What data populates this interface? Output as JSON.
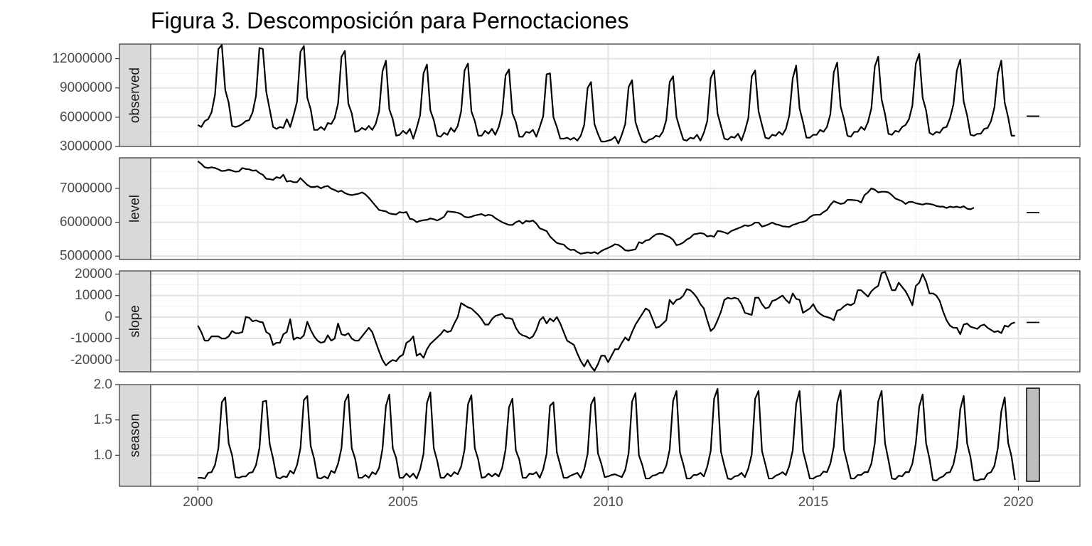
{
  "chart_data": {
    "type": "line",
    "title": "Figura 3. Descomposición para Pernoctaciones",
    "xlabel": "",
    "ylabel": "",
    "x_ticks": [
      "2000",
      "2005",
      "2010",
      "2015",
      "2020"
    ],
    "xlim": [
      1998.85,
      2021.5
    ],
    "frequency": "monthly",
    "x_start": "2000-01",
    "grid": true,
    "legend": "none",
    "line_color": "#000000",
    "panels": [
      {
        "name": "observed",
        "ylim": [
          3000000,
          13500000
        ],
        "y_ticks": [
          3000000,
          6000000,
          9000000,
          12000000
        ],
        "y_tick_labels": [
          "3000000",
          "6000000",
          "9000000",
          "12000000"
        ],
        "scale_indicator": "line",
        "values": [
          5200000,
          5000000,
          5600000,
          5800000,
          6500000,
          8300000,
          13000000,
          13400000,
          8800000,
          7500000,
          5100000,
          5000000,
          5100000,
          5300000,
          5600000,
          5700000,
          6500000,
          8200000,
          13100000,
          13000000,
          8600000,
          6800000,
          5000000,
          4800000,
          5000000,
          4900000,
          5800000,
          5000000,
          6200000,
          7600000,
          12700000,
          13300000,
          8000000,
          6800000,
          4700000,
          4700000,
          5000000,
          4700000,
          5400000,
          5300000,
          5900000,
          7400000,
          12200000,
          12800000,
          7400000,
          6400000,
          4500000,
          4600000,
          4900000,
          4700000,
          5100000,
          4700000,
          5300000,
          6600000,
          10700000,
          11800000,
          6800000,
          5800000,
          4100000,
          4200000,
          4600000,
          4300000,
          4800000,
          3800000,
          4900000,
          6200000,
          10500000,
          11400000,
          6700000,
          5700000,
          4100000,
          4000000,
          4400000,
          4200000,
          4900000,
          4500000,
          5100000,
          6600000,
          10800000,
          11500000,
          6600000,
          5600000,
          4100000,
          4100000,
          4600000,
          4300000,
          4800000,
          4200000,
          5000000,
          6400000,
          10300000,
          10900000,
          6400000,
          5500000,
          4000000,
          4000000,
          4500000,
          4400000,
          4700000,
          4000000,
          5000000,
          6100000,
          10400000,
          10500000,
          6000000,
          5000000,
          3800000,
          3800000,
          3900000,
          3700000,
          3900000,
          3600000,
          4100000,
          5200000,
          9000000,
          9600000,
          5300000,
          4300000,
          3500000,
          3500000,
          3600000,
          3700000,
          4000000,
          3300000,
          4200000,
          5300000,
          9100000,
          9800000,
          5500000,
          4400000,
          3500000,
          3400000,
          3700000,
          3800000,
          4100000,
          4000000,
          4500000,
          5700000,
          9600000,
          10200000,
          6000000,
          4800000,
          3700000,
          3600000,
          3900000,
          3800000,
          4200000,
          3600000,
          4400000,
          5600000,
          10000000,
          10800000,
          6400000,
          5100000,
          3800000,
          3700000,
          4000000,
          3900000,
          4300000,
          3600000,
          4600000,
          5900000,
          10200000,
          10800000,
          6600000,
          5200000,
          3900000,
          3800000,
          4200000,
          4100000,
          4500000,
          4200000,
          4800000,
          6200000,
          10000000,
          11300000,
          6900000,
          5500000,
          3900000,
          3900000,
          4200000,
          4200000,
          4700000,
          4500000,
          5000000,
          6300000,
          10600000,
          11600000,
          7100000,
          5800000,
          4100000,
          4000000,
          4500000,
          4500000,
          5000000,
          4700000,
          5500000,
          6900000,
          11200000,
          12200000,
          7800000,
          6300000,
          4300000,
          4200000,
          4600000,
          4500000,
          5000000,
          5200000,
          5800000,
          7200000,
          11500000,
          12500000,
          8000000,
          6700000,
          4400000,
          4200000,
          4500000,
          4400000,
          4900000,
          5000000,
          5900000,
          7300000,
          10800000,
          11900000,
          7600000,
          6200000,
          4200000,
          4100000,
          4300000,
          4300000,
          4800000,
          4900000,
          5600000,
          7000000,
          10500000,
          11800000,
          7500000,
          6000000,
          4100000,
          4100000
        ]
      },
      {
        "name": "level",
        "ylim": [
          4900000,
          7900000
        ],
        "y_ticks": [
          5000000,
          6000000,
          7000000
        ],
        "y_tick_labels": [
          "5000000",
          "6000000",
          "7000000"
        ],
        "scale_indicator": "line",
        "values": [
          7800000,
          7720000,
          7620000,
          7600000,
          7620000,
          7600000,
          7560000,
          7510000,
          7520000,
          7550000,
          7520000,
          7490000,
          7500000,
          7600000,
          7570000,
          7560000,
          7520000,
          7530000,
          7450000,
          7400000,
          7280000,
          7270000,
          7250000,
          7330000,
          7300000,
          7400000,
          7200000,
          7220000,
          7180000,
          7180000,
          7300000,
          7200000,
          7100000,
          7040000,
          7040000,
          7060000,
          7000000,
          7050000,
          7070000,
          6990000,
          6950000,
          6900000,
          6930000,
          6860000,
          6820000,
          6800000,
          6820000,
          6840000,
          6880000,
          6820000,
          6720000,
          6600000,
          6480000,
          6360000,
          6340000,
          6320000,
          6260000,
          6240000,
          6230000,
          6300000,
          6280000,
          6300000,
          6100000,
          6080000,
          6000000,
          6040000,
          6060000,
          6070000,
          6110000,
          6090000,
          6050000,
          6100000,
          6160000,
          6320000,
          6310000,
          6300000,
          6280000,
          6240000,
          6160000,
          6140000,
          6160000,
          6200000,
          6220000,
          6240000,
          6190000,
          6220000,
          6200000,
          6120000,
          6060000,
          6000000,
          5960000,
          5920000,
          5920000,
          6000000,
          6040000,
          5960000,
          6040000,
          6020000,
          6050000,
          5960000,
          5820000,
          5780000,
          5740000,
          5580000,
          5480000,
          5390000,
          5360000,
          5340000,
          5240000,
          5180000,
          5190000,
          5120000,
          5070000,
          5090000,
          5110000,
          5090000,
          5120000,
          5070000,
          5150000,
          5200000,
          5240000,
          5290000,
          5350000,
          5330000,
          5260000,
          5170000,
          5160000,
          5180000,
          5200000,
          5410000,
          5380000,
          5460000,
          5480000,
          5570000,
          5640000,
          5660000,
          5650000,
          5600000,
          5560000,
          5480000,
          5320000,
          5350000,
          5400000,
          5490000,
          5540000,
          5640000,
          5660000,
          5680000,
          5660000,
          5580000,
          5600000,
          5570000,
          5740000,
          5730000,
          5700000,
          5660000,
          5740000,
          5780000,
          5820000,
          5860000,
          5910000,
          5890000,
          5920000,
          5990000,
          5990000,
          5870000,
          5900000,
          5940000,
          5990000,
          5940000,
          5920000,
          5880000,
          5870000,
          5860000,
          5920000,
          5950000,
          5990000,
          6010000,
          6050000,
          6150000,
          6210000,
          6220000,
          6220000,
          6300000,
          6360000,
          6510000,
          6620000,
          6580000,
          6540000,
          6560000,
          6660000,
          6660000,
          6650000,
          6640000,
          6580000,
          6800000,
          6880000,
          7000000,
          6960000,
          6880000,
          6900000,
          6900000,
          6880000,
          6800000,
          6700000,
          6660000,
          6620000,
          6540000,
          6600000,
          6600000,
          6560000,
          6540000,
          6520000,
          6550000,
          6540000,
          6520000,
          6480000,
          6460000,
          6460000,
          6420000,
          6460000,
          6440000,
          6460000,
          6430000,
          6470000,
          6400000,
          6380000,
          6430000
        ]
      },
      {
        "name": "slope",
        "ylim": [
          -25500,
          21500
        ],
        "y_ticks": [
          -20000,
          -10000,
          0,
          10000,
          20000
        ],
        "y_tick_labels": [
          "-20000",
          "-10000",
          "0",
          "10000",
          "20000"
        ],
        "scale_indicator": "line",
        "values": [
          -4000,
          -7000,
          -11000,
          -11000,
          -9000,
          -9000,
          -9000,
          -10000,
          -10000,
          -9000,
          -6500,
          -7500,
          -7500,
          -7000,
          0,
          -300,
          -2000,
          -1500,
          -2200,
          -2500,
          -7000,
          -8000,
          -13000,
          -12000,
          -12000,
          -8000,
          -7000,
          -1000,
          -10500,
          -9500,
          -10000,
          -8500,
          -2200,
          -6000,
          -9000,
          -11000,
          -12000,
          -11500,
          -8500,
          -11000,
          -10000,
          -3000,
          -8000,
          -8500,
          -7500,
          -10000,
          -11000,
          -11000,
          -9000,
          -7000,
          -5000,
          -7000,
          -11500,
          -16000,
          -20000,
          -22500,
          -21000,
          -20000,
          -20500,
          -18500,
          -17500,
          -12000,
          -11000,
          -9000,
          -18000,
          -17000,
          -19000,
          -15000,
          -12500,
          -11000,
          -9500,
          -8000,
          -6000,
          -7000,
          -6500,
          -3000,
          0,
          6500,
          5500,
          4500,
          4000,
          2500,
          1000,
          -1000,
          -3500,
          -3500,
          -1000,
          500,
          1000,
          1500,
          -500,
          -500,
          -1000,
          -5000,
          -7500,
          -8500,
          -9000,
          -10000,
          -9000,
          -6000,
          -1500,
          0,
          -3000,
          -700,
          -2000,
          0,
          -3000,
          -7000,
          -11000,
          -12000,
          -13000,
          -17000,
          -20500,
          -23000,
          -20000,
          -23000,
          -25000,
          -22000,
          -18000,
          -18000,
          -21000,
          -18000,
          -15000,
          -15000,
          -12000,
          -9500,
          -11000,
          -7000,
          -3500,
          -1000,
          1500,
          4000,
          3000,
          -1000,
          -5000,
          -4500,
          -3000,
          -1500,
          8000,
          6000,
          8000,
          8500,
          10000,
          13000,
          12500,
          11000,
          9000,
          6000,
          4000,
          -1500,
          -6500,
          -5000,
          -1500,
          2500,
          8000,
          9000,
          8500,
          9000,
          8500,
          6000,
          2000,
          1500,
          1000,
          9000,
          9000,
          6000,
          4000,
          4500,
          7500,
          8000,
          9000,
          10000,
          8000,
          6500,
          11000,
          8500,
          8000,
          2000,
          3000,
          4000,
          6000,
          3000,
          1500,
          500,
          0,
          -500,
          -1500,
          3000,
          3500,
          5000,
          6000,
          5500,
          6500,
          12500,
          12500,
          11000,
          9500,
          12000,
          13500,
          14500,
          20500,
          21000,
          17000,
          12500,
          12500,
          16000,
          14000,
          12000,
          9000,
          5500,
          14500,
          16000,
          20000,
          16500,
          11000,
          11000,
          10000,
          7500,
          2500,
          -1500,
          -4000,
          -5000,
          -5000,
          -8000,
          -3500,
          -3000,
          -4500,
          -5000,
          -5500,
          -4000,
          -3500,
          -5000,
          -6000,
          -7000,
          -6500,
          -7500,
          -4000,
          -4500,
          -3000,
          -2500
        ]
      },
      {
        "name": "season",
        "ylim": [
          0.56,
          2.0
        ],
        "y_ticks": [
          1.0,
          1.5,
          2.0
        ],
        "y_tick_labels": [
          "1.0",
          "1.5",
          "2.0"
        ],
        "scale_indicator": "bar",
        "values": [
          0.68,
          0.68,
          0.67,
          0.75,
          0.76,
          0.86,
          1.1,
          1.75,
          1.82,
          1.17,
          1.0,
          0.69,
          0.68,
          0.7,
          0.7,
          0.75,
          0.76,
          0.86,
          1.1,
          1.76,
          1.77,
          1.16,
          0.95,
          0.69,
          0.67,
          0.7,
          0.69,
          0.78,
          0.74,
          0.86,
          1.1,
          1.78,
          1.84,
          1.13,
          0.95,
          0.68,
          0.67,
          0.7,
          0.67,
          0.78,
          0.75,
          0.88,
          1.1,
          1.76,
          1.86,
          1.1,
          0.95,
          0.68,
          0.68,
          0.72,
          0.68,
          0.76,
          0.73,
          0.82,
          1.09,
          1.7,
          1.86,
          1.1,
          0.96,
          0.68,
          0.68,
          0.74,
          0.69,
          0.74,
          0.67,
          0.8,
          1.02,
          1.74,
          1.89,
          1.1,
          0.92,
          0.68,
          0.68,
          0.74,
          0.7,
          0.76,
          0.73,
          0.84,
          1.08,
          1.72,
          1.85,
          1.1,
          0.94,
          0.68,
          0.69,
          0.74,
          0.7,
          0.74,
          0.7,
          0.82,
          1.08,
          1.68,
          1.8,
          1.07,
          0.94,
          0.68,
          0.68,
          0.74,
          0.73,
          0.76,
          0.68,
          0.8,
          1.02,
          1.7,
          1.75,
          1.04,
          0.86,
          0.68,
          0.68,
          0.71,
          0.73,
          0.75,
          0.68,
          0.8,
          1.02,
          1.72,
          1.82,
          1.03,
          0.88,
          0.69,
          0.7,
          0.72,
          0.73,
          0.71,
          0.69,
          0.79,
          1.03,
          1.76,
          1.88,
          1.0,
          0.86,
          0.67,
          0.67,
          0.71,
          0.72,
          0.75,
          0.75,
          0.85,
          1.08,
          1.77,
          1.91,
          1.04,
          0.87,
          0.67,
          0.67,
          0.72,
          0.72,
          0.75,
          0.7,
          0.84,
          1.06,
          1.8,
          1.94,
          1.05,
          0.85,
          0.67,
          0.66,
          0.7,
          0.71,
          0.75,
          0.69,
          0.81,
          1.01,
          1.8,
          1.91,
          1.06,
          0.87,
          0.67,
          0.67,
          0.71,
          0.73,
          0.76,
          0.72,
          0.85,
          1.07,
          1.73,
          1.91,
          1.06,
          0.87,
          0.67,
          0.67,
          0.7,
          0.71,
          0.77,
          0.76,
          0.88,
          1.12,
          1.74,
          1.92,
          1.08,
          0.88,
          0.67,
          0.67,
          0.72,
          0.72,
          0.76,
          0.76,
          0.88,
          1.17,
          1.76,
          1.91,
          1.17,
          0.93,
          0.67,
          0.66,
          0.71,
          0.7,
          0.76,
          0.76,
          0.88,
          1.17,
          1.69,
          1.86,
          1.17,
          0.95,
          0.65,
          0.64,
          0.68,
          0.7,
          0.75,
          0.76,
          0.87,
          1.11,
          1.65,
          1.84,
          1.17,
          0.97,
          0.65,
          0.64,
          0.66,
          0.66,
          0.74,
          0.76,
          0.85,
          1.1,
          1.62,
          1.82,
          1.18,
          0.98,
          0.65
        ]
      }
    ]
  }
}
